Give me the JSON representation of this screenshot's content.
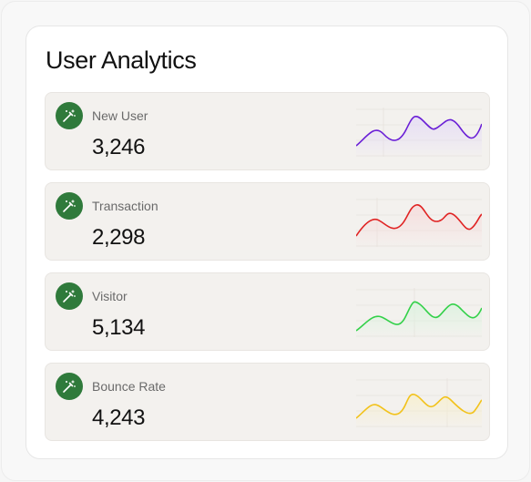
{
  "title": "User Analytics",
  "colors": {
    "icon_bg": "#2f7a3b",
    "new_user": "#6a1fd6",
    "transaction": "#e02424",
    "visitor": "#34d14a",
    "bounce_rate": "#f2c21b"
  },
  "stats": [
    {
      "label": "New User",
      "value": "3,246",
      "icon": "magic-wand-icon",
      "color": "#6a1fd6",
      "fill": "#e5dcf6"
    },
    {
      "label": "Transaction",
      "value": "2,298",
      "icon": "magic-wand-icon",
      "color": "#e02424",
      "fill": "#f6dcdc"
    },
    {
      "label": "Visitor",
      "value": "5,134",
      "icon": "magic-wand-icon",
      "color": "#34d14a",
      "fill": "#dcf3df"
    },
    {
      "label": "Bounce Rate",
      "value": "4,243",
      "icon": "magic-wand-icon",
      "color": "#f2c21b",
      "fill": "#f7efcf"
    }
  ]
}
